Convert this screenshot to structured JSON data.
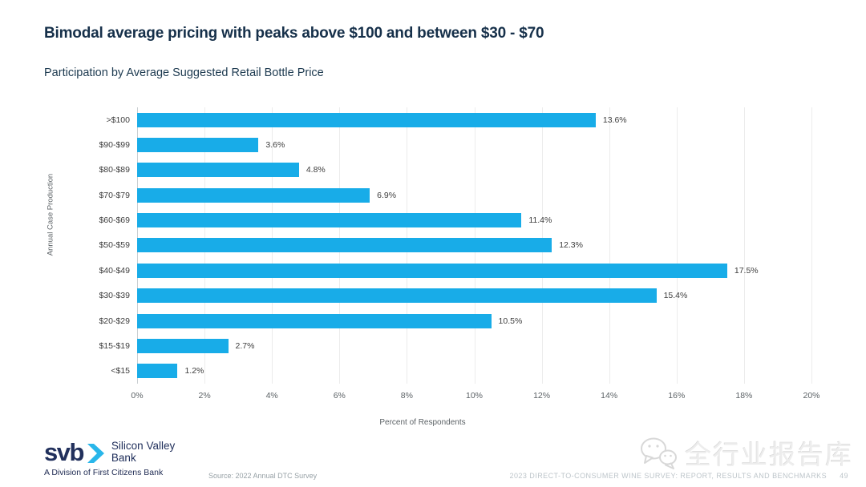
{
  "header": {
    "title": "Bimodal average pricing with peaks above $100 and between $30 - $70",
    "subtitle": "Participation by Average Suggested Retail Bottle Price"
  },
  "chart_data": {
    "type": "bar",
    "orientation": "horizontal",
    "title": "Participation by Average Suggested Retail Bottle Price",
    "categories": [
      ">$100",
      "$90-$99",
      "$80-$89",
      "$70-$79",
      "$60-$69",
      "$50-$59",
      "$40-$49",
      "$30-$39",
      "$20-$29",
      "$15-$19",
      "<$15"
    ],
    "values": [
      13.6,
      3.6,
      4.8,
      6.9,
      11.4,
      12.3,
      17.5,
      15.4,
      10.5,
      2.7,
      1.2
    ],
    "value_labels": [
      "13.6%",
      "3.6%",
      "4.8%",
      "6.9%",
      "11.4%",
      "12.3%",
      "17.5%",
      "15.4%",
      "10.5%",
      "2.7%",
      "1.2%"
    ],
    "xlabel": "Percent of Respondents",
    "ylabel": "Annual Case Production",
    "xlim": [
      0,
      20
    ],
    "x_ticks": [
      "0%",
      "2%",
      "4%",
      "6%",
      "8%",
      "10%",
      "12%",
      "14%",
      "16%",
      "18%",
      "20%"
    ],
    "grid": "vertical",
    "legend": "none",
    "bar_color": "#18ace8"
  },
  "footer": {
    "logo": {
      "wordmark": "svb",
      "name_line1": "Silicon Valley",
      "name_line2": "Bank",
      "division": "A Division of First Citizens Bank"
    },
    "source": "Source: 2022 Annual DTC Survey",
    "report_title": "2023 DIRECT-TO-CONSUMER WINE SURVEY: REPORT, RESULTS AND BENCHMARKS",
    "page_number": "49"
  },
  "watermark": {
    "icon": "wechat-icon",
    "text": "全行业报告库"
  },
  "colors": {
    "accent": "#18ace8",
    "title_navy": "#16304a",
    "logo_navy": "#21305c",
    "grid": "#ececec"
  }
}
